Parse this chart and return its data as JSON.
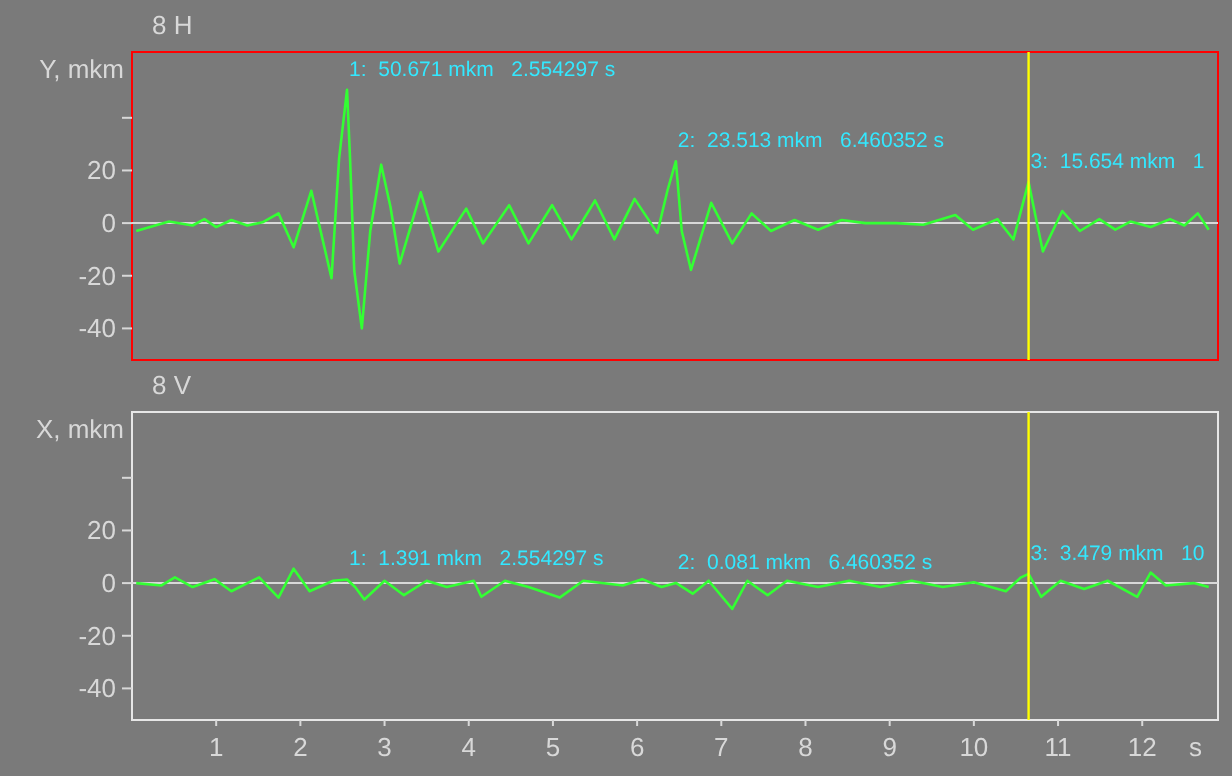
{
  "chart_data": [
    {
      "type": "line",
      "title": "8 H",
      "ylabel": "Y, mkm",
      "xlim": [
        0,
        12.9
      ],
      "ylim": [
        -52,
        65
      ],
      "yticks": [
        -40,
        -20,
        0,
        20,
        {
          "value": 40,
          "label": null
        }
      ],
      "tick_labels": "y",
      "x": [
        0.05,
        0.44,
        0.72,
        0.86,
        1.0,
        1.18,
        1.37,
        1.55,
        1.74,
        1.92,
        2.13,
        2.37,
        2.46,
        2.554297,
        2.59,
        2.64,
        2.73,
        2.83,
        2.96,
        3.07,
        3.18,
        3.43,
        3.64,
        3.97,
        4.17,
        4.48,
        4.71,
        4.99,
        5.22,
        5.5,
        5.73,
        5.97,
        6.24,
        6.36,
        6.460352,
        6.53,
        6.64,
        6.88,
        7.13,
        7.36,
        7.59,
        7.87,
        8.15,
        8.43,
        8.71,
        9.08,
        9.4,
        9.78,
        9.99,
        10.28,
        10.47,
        10.65,
        10.73,
        10.82,
        11.05,
        11.26,
        11.49,
        11.68,
        11.86,
        12.1,
        12.33,
        12.5,
        12.66,
        12.79
      ],
      "series": [
        {
          "color": "#33ff33",
          "values": [
            -3,
            0.6,
            -0.9,
            1.5,
            -1.5,
            1.2,
            -0.9,
            0.3,
            3.7,
            -9.2,
            12.3,
            -20.9,
            24.6,
            50.671,
            24.6,
            -18,
            -40,
            -3,
            22.2,
            6.2,
            -15.4,
            11.7,
            -10.8,
            5.5,
            -7.7,
            6.8,
            -7.7,
            6.8,
            -6.2,
            8.6,
            -6.2,
            9.2,
            -3.7,
            12.3,
            23.513,
            -3,
            -17.8,
            7.7,
            -7.7,
            3.7,
            -3,
            1.2,
            -2.5,
            1.2,
            0,
            0,
            -0.6,
            3.1,
            -2.5,
            1.5,
            -6.2,
            15.654,
            3,
            -10.8,
            4.6,
            -3,
            1.5,
            -2.5,
            0.6,
            -1.5,
            1.5,
            -0.9,
            3.7,
            -2.5
          ]
        }
      ],
      "ref_lines": [
        {
          "axis": "y",
          "value": 0,
          "color": "#d8d8d8"
        },
        {
          "axis": "x",
          "value": 10.65,
          "color": "#ffff00"
        }
      ],
      "annotations": [
        {
          "text": "1:  50.671 mkm   2.554297 s",
          "x": 2.554297,
          "y": 50.671
        },
        {
          "text": "2:  23.513 mkm   6.460352 s",
          "x": 6.460352,
          "y": 23.513
        },
        {
          "text": "3:  15.654 mkm   1",
          "x": 10.65,
          "y": 15.654
        }
      ]
    },
    {
      "type": "line",
      "title": "8 V",
      "ylabel": "X, mkm",
      "xlabel": "s",
      "xlim": [
        0,
        12.9
      ],
      "xticks": [
        1,
        2,
        3,
        4,
        5,
        6,
        7,
        8,
        9,
        10,
        11,
        12
      ],
      "ylim": [
        -52,
        65
      ],
      "yticks": [
        -40,
        -20,
        0,
        20,
        {
          "value": 40,
          "label": null
        }
      ],
      "x": [
        0.05,
        0.35,
        0.51,
        0.72,
        0.98,
        1.18,
        1.51,
        1.74,
        1.92,
        2.11,
        2.39,
        2.554297,
        2.65,
        2.76,
        3.0,
        3.23,
        3.5,
        3.74,
        4.06,
        4.15,
        4.43,
        4.71,
        5.08,
        5.36,
        5.83,
        6.06,
        6.29,
        6.460352,
        6.66,
        6.85,
        7.13,
        7.31,
        7.55,
        7.78,
        8.15,
        8.52,
        8.89,
        9.26,
        9.63,
        10.0,
        10.38,
        10.56,
        10.65,
        10.8,
        11.03,
        11.31,
        11.59,
        11.94,
        12.1,
        12.28,
        12.61,
        12.79
      ],
      "series": [
        {
          "color": "#33ff33",
          "values": [
            0,
            -0.9,
            2.2,
            -1.5,
            1.5,
            -3.1,
            2.2,
            -5.5,
            5.5,
            -3.1,
            0.9,
            1.391,
            -1.5,
            -6.2,
            0.9,
            -4.6,
            0.9,
            -1.5,
            0.9,
            -5.2,
            0.9,
            -1.5,
            -5.5,
            0.9,
            -0.9,
            1.5,
            -1.5,
            0.081,
            -4,
            0.9,
            -9.8,
            0.9,
            -4.6,
            0.9,
            -1.5,
            0.9,
            -1.5,
            0.9,
            -1.5,
            0.3,
            -3.1,
            2.2,
            3.479,
            -5.2,
            0.9,
            -2.2,
            0.9,
            -5.2,
            4,
            -0.9,
            0,
            -1.5
          ]
        }
      ],
      "ref_lines": [
        {
          "axis": "y",
          "value": 0,
          "color": "#d8d8d8"
        },
        {
          "axis": "x",
          "value": 10.65,
          "color": "#ffff00"
        }
      ],
      "annotations": [
        {
          "text": "1:  1.391 mkm   2.554297 s",
          "x": 2.554297,
          "y": 1.391
        },
        {
          "text": "2:  0.081 mkm   6.460352 s",
          "x": 6.460352,
          "y": 0.081
        },
        {
          "text": "3:  3.479 mkm   10",
          "x": 10.65,
          "y": 3.479
        }
      ]
    }
  ]
}
